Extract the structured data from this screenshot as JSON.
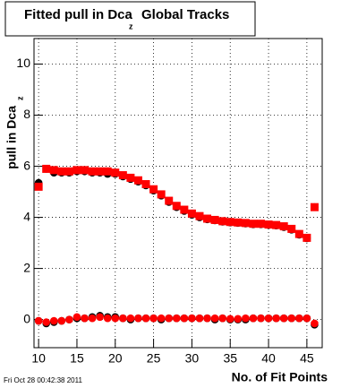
{
  "chart_data": {
    "type": "scatter",
    "title": "Fitted pull in Dca",
    "title_subscript": "z",
    "title_suffix": "Global Tracks",
    "y_label": "pull in Dca",
    "y_label_subscript": "z",
    "x_label": "No. of Fit Points",
    "footer": "Fri Oct 28 00:42:38 2011",
    "x": [
      10,
      11,
      12,
      13,
      14,
      15,
      16,
      17,
      18,
      19,
      20,
      21,
      22,
      23,
      24,
      25,
      26,
      27,
      28,
      29,
      30,
      31,
      32,
      33,
      34,
      35,
      36,
      37,
      38,
      39,
      40,
      41,
      42,
      43,
      44,
      45,
      46
    ],
    "xlim": [
      9.4,
      47
    ],
    "ylim": [
      -1.1,
      11
    ],
    "xticks": [
      10,
      15,
      20,
      25,
      30,
      35,
      40,
      45
    ],
    "yticks": [
      0,
      2,
      4,
      6,
      8,
      10
    ],
    "grid": true,
    "series": [
      {
        "color": "#000000",
        "marker": "circle",
        "values": [
          5.35,
          5.9,
          5.75,
          5.75,
          5.75,
          5.8,
          5.8,
          5.75,
          5.75,
          5.7,
          5.7,
          5.6,
          5.5,
          5.4,
          5.25,
          5.05,
          4.85,
          4.6,
          4.4,
          4.25,
          4.1,
          4.0,
          3.92,
          3.88,
          3.83,
          3.8,
          3.78,
          3.76,
          3.73,
          3.73,
          3.7,
          3.68,
          3.62,
          3.52,
          3.32,
          3.18,
          4.4
        ]
      },
      {
        "color": "#ff0000",
        "marker": "square",
        "values": [
          5.2,
          5.9,
          5.85,
          5.8,
          5.8,
          5.85,
          5.85,
          5.8,
          5.8,
          5.8,
          5.75,
          5.65,
          5.55,
          5.45,
          5.3,
          5.1,
          4.9,
          4.65,
          4.45,
          4.3,
          4.15,
          4.05,
          3.95,
          3.9,
          3.85,
          3.82,
          3.8,
          3.78,
          3.75,
          3.75,
          3.72,
          3.7,
          3.65,
          3.55,
          3.35,
          3.2,
          4.4
        ]
      },
      {
        "color": "#000000",
        "marker": "circle",
        "values": [
          -0.05,
          -0.15,
          -0.1,
          -0.05,
          0.0,
          0.05,
          0.05,
          0.1,
          0.15,
          0.1,
          0.1,
          0.05,
          0.0,
          0.05,
          0.05,
          0.05,
          0.0,
          0.05,
          0.05,
          0.05,
          0.05,
          0.05,
          0.05,
          0.0,
          0.05,
          0.0,
          0.0,
          0.0,
          0.05,
          0.05,
          0.05,
          0.05,
          0.05,
          0.05,
          0.05,
          0.05,
          -0.2
        ]
      },
      {
        "color": "#ff0000",
        "marker": "circle",
        "values": [
          -0.05,
          -0.1,
          -0.05,
          -0.05,
          0.0,
          0.1,
          0.05,
          0.05,
          0.1,
          0.05,
          0.05,
          0.05,
          0.05,
          0.05,
          0.05,
          0.05,
          0.05,
          0.05,
          0.05,
          0.05,
          0.05,
          0.05,
          0.05,
          0.05,
          0.05,
          0.03,
          0.03,
          0.05,
          0.05,
          0.05,
          0.05,
          0.05,
          0.05,
          0.05,
          0.05,
          0.05,
          -0.15
        ]
      }
    ]
  }
}
